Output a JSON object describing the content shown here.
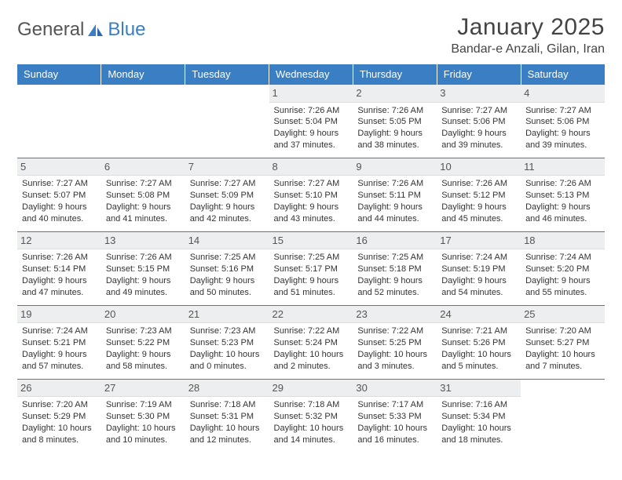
{
  "logo": {
    "t1": "General",
    "t2": "Blue"
  },
  "header": {
    "title": "January 2025",
    "location": "Bandar-e Anzali, Gilan, Iran"
  },
  "colors": {
    "accent": "#3a7fc4",
    "headerBg": "#eceeef"
  },
  "weekdays": [
    "Sunday",
    "Monday",
    "Tuesday",
    "Wednesday",
    "Thursday",
    "Friday",
    "Saturday"
  ],
  "weeks": [
    [
      {
        "n": "",
        "l1": "",
        "l2": "",
        "l3": "",
        "l4": ""
      },
      {
        "n": "",
        "l1": "",
        "l2": "",
        "l3": "",
        "l4": ""
      },
      {
        "n": "",
        "l1": "",
        "l2": "",
        "l3": "",
        "l4": ""
      },
      {
        "n": "1",
        "l1": "Sunrise: 7:26 AM",
        "l2": "Sunset: 5:04 PM",
        "l3": "Daylight: 9 hours",
        "l4": "and 37 minutes."
      },
      {
        "n": "2",
        "l1": "Sunrise: 7:26 AM",
        "l2": "Sunset: 5:05 PM",
        "l3": "Daylight: 9 hours",
        "l4": "and 38 minutes."
      },
      {
        "n": "3",
        "l1": "Sunrise: 7:27 AM",
        "l2": "Sunset: 5:06 PM",
        "l3": "Daylight: 9 hours",
        "l4": "and 39 minutes."
      },
      {
        "n": "4",
        "l1": "Sunrise: 7:27 AM",
        "l2": "Sunset: 5:06 PM",
        "l3": "Daylight: 9 hours",
        "l4": "and 39 minutes."
      }
    ],
    [
      {
        "n": "5",
        "l1": "Sunrise: 7:27 AM",
        "l2": "Sunset: 5:07 PM",
        "l3": "Daylight: 9 hours",
        "l4": "and 40 minutes."
      },
      {
        "n": "6",
        "l1": "Sunrise: 7:27 AM",
        "l2": "Sunset: 5:08 PM",
        "l3": "Daylight: 9 hours",
        "l4": "and 41 minutes."
      },
      {
        "n": "7",
        "l1": "Sunrise: 7:27 AM",
        "l2": "Sunset: 5:09 PM",
        "l3": "Daylight: 9 hours",
        "l4": "and 42 minutes."
      },
      {
        "n": "8",
        "l1": "Sunrise: 7:27 AM",
        "l2": "Sunset: 5:10 PM",
        "l3": "Daylight: 9 hours",
        "l4": "and 43 minutes."
      },
      {
        "n": "9",
        "l1": "Sunrise: 7:26 AM",
        "l2": "Sunset: 5:11 PM",
        "l3": "Daylight: 9 hours",
        "l4": "and 44 minutes."
      },
      {
        "n": "10",
        "l1": "Sunrise: 7:26 AM",
        "l2": "Sunset: 5:12 PM",
        "l3": "Daylight: 9 hours",
        "l4": "and 45 minutes."
      },
      {
        "n": "11",
        "l1": "Sunrise: 7:26 AM",
        "l2": "Sunset: 5:13 PM",
        "l3": "Daylight: 9 hours",
        "l4": "and 46 minutes."
      }
    ],
    [
      {
        "n": "12",
        "l1": "Sunrise: 7:26 AM",
        "l2": "Sunset: 5:14 PM",
        "l3": "Daylight: 9 hours",
        "l4": "and 47 minutes."
      },
      {
        "n": "13",
        "l1": "Sunrise: 7:26 AM",
        "l2": "Sunset: 5:15 PM",
        "l3": "Daylight: 9 hours",
        "l4": "and 49 minutes."
      },
      {
        "n": "14",
        "l1": "Sunrise: 7:25 AM",
        "l2": "Sunset: 5:16 PM",
        "l3": "Daylight: 9 hours",
        "l4": "and 50 minutes."
      },
      {
        "n": "15",
        "l1": "Sunrise: 7:25 AM",
        "l2": "Sunset: 5:17 PM",
        "l3": "Daylight: 9 hours",
        "l4": "and 51 minutes."
      },
      {
        "n": "16",
        "l1": "Sunrise: 7:25 AM",
        "l2": "Sunset: 5:18 PM",
        "l3": "Daylight: 9 hours",
        "l4": "and 52 minutes."
      },
      {
        "n": "17",
        "l1": "Sunrise: 7:24 AM",
        "l2": "Sunset: 5:19 PM",
        "l3": "Daylight: 9 hours",
        "l4": "and 54 minutes."
      },
      {
        "n": "18",
        "l1": "Sunrise: 7:24 AM",
        "l2": "Sunset: 5:20 PM",
        "l3": "Daylight: 9 hours",
        "l4": "and 55 minutes."
      }
    ],
    [
      {
        "n": "19",
        "l1": "Sunrise: 7:24 AM",
        "l2": "Sunset: 5:21 PM",
        "l3": "Daylight: 9 hours",
        "l4": "and 57 minutes."
      },
      {
        "n": "20",
        "l1": "Sunrise: 7:23 AM",
        "l2": "Sunset: 5:22 PM",
        "l3": "Daylight: 9 hours",
        "l4": "and 58 minutes."
      },
      {
        "n": "21",
        "l1": "Sunrise: 7:23 AM",
        "l2": "Sunset: 5:23 PM",
        "l3": "Daylight: 10 hours",
        "l4": "and 0 minutes."
      },
      {
        "n": "22",
        "l1": "Sunrise: 7:22 AM",
        "l2": "Sunset: 5:24 PM",
        "l3": "Daylight: 10 hours",
        "l4": "and 2 minutes."
      },
      {
        "n": "23",
        "l1": "Sunrise: 7:22 AM",
        "l2": "Sunset: 5:25 PM",
        "l3": "Daylight: 10 hours",
        "l4": "and 3 minutes."
      },
      {
        "n": "24",
        "l1": "Sunrise: 7:21 AM",
        "l2": "Sunset: 5:26 PM",
        "l3": "Daylight: 10 hours",
        "l4": "and 5 minutes."
      },
      {
        "n": "25",
        "l1": "Sunrise: 7:20 AM",
        "l2": "Sunset: 5:27 PM",
        "l3": "Daylight: 10 hours",
        "l4": "and 7 minutes."
      }
    ],
    [
      {
        "n": "26",
        "l1": "Sunrise: 7:20 AM",
        "l2": "Sunset: 5:29 PM",
        "l3": "Daylight: 10 hours",
        "l4": "and 8 minutes."
      },
      {
        "n": "27",
        "l1": "Sunrise: 7:19 AM",
        "l2": "Sunset: 5:30 PM",
        "l3": "Daylight: 10 hours",
        "l4": "and 10 minutes."
      },
      {
        "n": "28",
        "l1": "Sunrise: 7:18 AM",
        "l2": "Sunset: 5:31 PM",
        "l3": "Daylight: 10 hours",
        "l4": "and 12 minutes."
      },
      {
        "n": "29",
        "l1": "Sunrise: 7:18 AM",
        "l2": "Sunset: 5:32 PM",
        "l3": "Daylight: 10 hours",
        "l4": "and 14 minutes."
      },
      {
        "n": "30",
        "l1": "Sunrise: 7:17 AM",
        "l2": "Sunset: 5:33 PM",
        "l3": "Daylight: 10 hours",
        "l4": "and 16 minutes."
      },
      {
        "n": "31",
        "l1": "Sunrise: 7:16 AM",
        "l2": "Sunset: 5:34 PM",
        "l3": "Daylight: 10 hours",
        "l4": "and 18 minutes."
      },
      {
        "n": "",
        "l1": "",
        "l2": "",
        "l3": "",
        "l4": ""
      }
    ]
  ]
}
